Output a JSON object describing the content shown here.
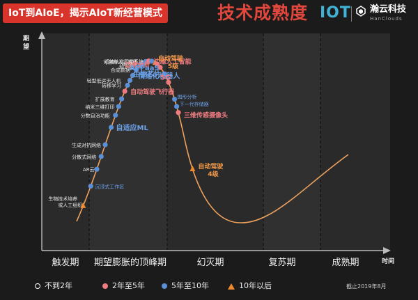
{
  "header": {
    "title": "IoT到AIoE，揭示AIoT新经营模式",
    "subject": "技术成熟度",
    "logo_iot": "IOT",
    "brand_cn": "瀚云科技",
    "brand_en": "HanClouds"
  },
  "colors": {
    "title_bg": "#d9342b",
    "subject": "#e0483d",
    "curve": "#f0a35e",
    "blue": "#5b8fd6",
    "pink": "#f07c80",
    "orange": "#f08a2c",
    "hollow": "#ffffff",
    "label_white": "#e6e6e6",
    "label_blue": "#6aa0e8",
    "label_pink": "#f07c80",
    "label_orange": "#f39a4a"
  },
  "chart_data": {
    "type": "hype-cycle",
    "ylabel": "期望",
    "xlabel": "时间",
    "phases": [
      "触发期",
      "期望膨胀的顶峰期",
      "幻灭期",
      "复苏期",
      "成熟期"
    ],
    "points": [
      {
        "label": "生物技术培养\n或人工组织",
        "category": "10年以后",
        "t": 0.02
      },
      {
        "label": "沉浸式工作区",
        "category": "5年至10年",
        "t": 0.045
      },
      {
        "label": "AR云",
        "category": "5年至10年",
        "t": 0.066
      },
      {
        "label": "分散式网络",
        "category": "5年至10年",
        "t": 0.082
      },
      {
        "label": "生成对抗网络",
        "category": "5年至10年",
        "t": 0.097
      },
      {
        "label": "自适应ML",
        "category": "5年至10年",
        "t": 0.12
      },
      {
        "label": "分数自治功能",
        "category": "5年至10年",
        "t": 0.137
      },
      {
        "label": "纳米三维打印",
        "category": "5年至10年",
        "t": 0.15
      },
      {
        "label": "扩展教育",
        "category": "5年至10年",
        "t": 0.162
      },
      {
        "label": "自动驾驶飞行器",
        "category": "2年至5年",
        "t": 0.175
      },
      {
        "label": "转移学习",
        "category": "5年至10年",
        "t": 0.186
      },
      {
        "label": "轻型低运无人机",
        "category": "5年至10年",
        "t": 0.196
      },
      {
        "label": "情绪化机器人",
        "category": "5年至10年",
        "t": 0.207
      },
      {
        "label": "合成数据",
        "category": "5年至10年",
        "t": 0.222
      },
      {
        "label": "知识图",
        "category": "5年至10年",
        "t": 0.234
      },
      {
        "label": "拟人化",
        "category": "5年至10年",
        "t": 0.246
      },
      {
        "label": "可解释人工智能",
        "category": "5年至10年",
        "t": 0.26
      },
      {
        "label": "边缘人工智能",
        "category": "2年至5年",
        "t": 0.275
      },
      {
        "label": "近地轨道卫星系统",
        "category": "5年至10年",
        "t": 0.29
      },
      {
        "label": "自动驾驶\n5级",
        "category": "10年以后",
        "t": 0.308
      },
      {
        "label": "边缘分析",
        "category": "2年至5年",
        "t": 0.318
      },
      {
        "label": "AI PaaS",
        "category": "2年至5年",
        "t": 0.335
      },
      {
        "label": "生物芯片",
        "category": "5年至10年",
        "t": 0.36
      },
      {
        "label": "5G",
        "category": "2年至5年",
        "t": 0.385
      },
      {
        "label": "图形分析",
        "category": "5年至10年",
        "t": 0.425
      },
      {
        "label": "下一代存储器",
        "category": "5年至10年",
        "t": 0.44
      },
      {
        "label": "三维传感摄像头",
        "category": "2年至5年",
        "t": 0.452
      },
      {
        "label": "自动驾驶\n4级",
        "category": "10年以后",
        "t": 0.555
      }
    ]
  },
  "legend": {
    "items": [
      {
        "label": "不到2年",
        "kind": "hollow"
      },
      {
        "label": "2年至5年",
        "kind": "pink"
      },
      {
        "label": "5年至10年",
        "kind": "blue"
      },
      {
        "label": "10年以后",
        "kind": "orange"
      }
    ]
  },
  "note": "截止2019年8月"
}
